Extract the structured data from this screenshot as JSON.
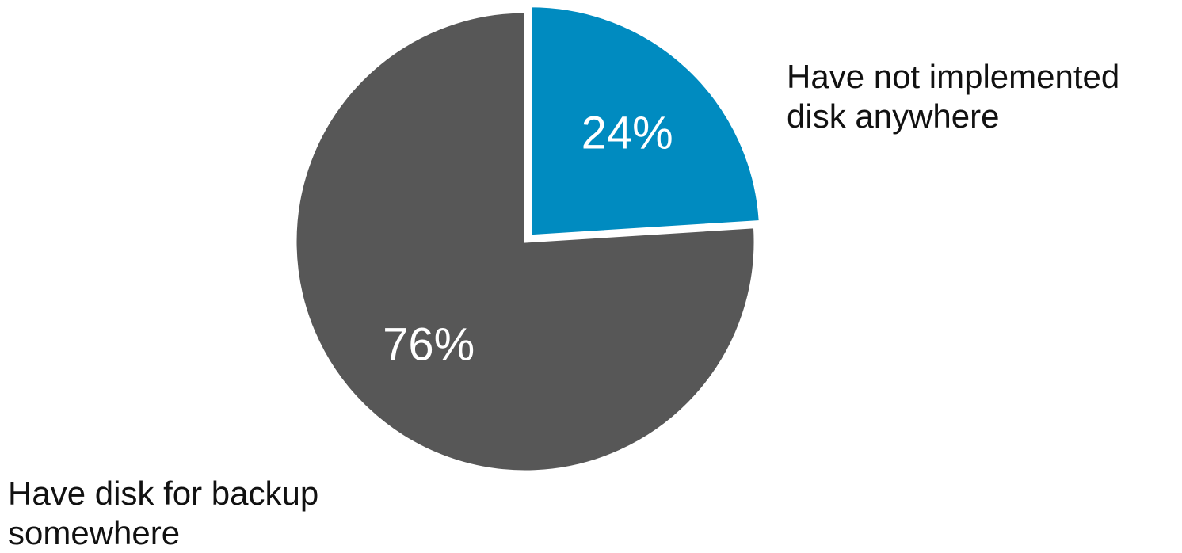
{
  "chart_data": {
    "type": "pie",
    "slices": [
      {
        "label_lines": [
          "Have not implemented",
          "disk anywhere"
        ],
        "value": 24,
        "value_label": "24%",
        "color": "#008BC0",
        "exploded": true
      },
      {
        "label_lines": [
          "Have disk for backup",
          "somewhere"
        ],
        "value": 76,
        "value_label": "76%",
        "color": "#575757",
        "exploded": false
      }
    ],
    "start": "12 o'clock, clockwise",
    "legend": "none (callout labels beside the pie)"
  }
}
